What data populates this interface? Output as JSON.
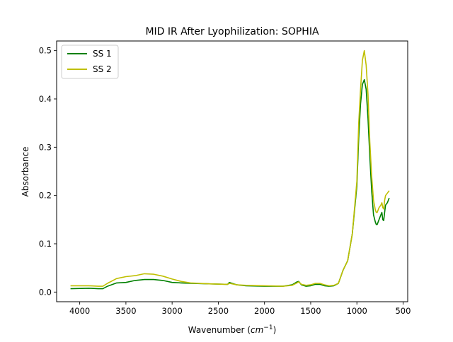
{
  "chart_data": {
    "type": "line",
    "title": "MID IR After Lyophilization: SOPHIA",
    "xlabel": "Wavenumber",
    "xlabel_unit_base": "cm",
    "xlabel_unit_exp": "−1",
    "ylabel": "Absorbance",
    "xlim": [
      4250,
      450
    ],
    "ylim": [
      -0.02,
      0.52
    ],
    "x_inverted": true,
    "grid": false,
    "legend_position": "top-left",
    "xticks": [
      4000,
      3500,
      3000,
      2500,
      2000,
      1500,
      1000,
      500
    ],
    "xtick_labels": [
      "4000",
      "3500",
      "3000",
      "2500",
      "2000",
      "1500",
      "1000",
      "500"
    ],
    "yticks": [
      0.0,
      0.1,
      0.2,
      0.3,
      0.4,
      0.5
    ],
    "ytick_labels": [
      "0.0",
      "0.1",
      "0.2",
      "0.3",
      "0.4",
      "0.5"
    ],
    "series": [
      {
        "name": "SS 1",
        "color": "#008000",
        "x": [
          4100,
          3900,
          3800,
          3750,
          3700,
          3600,
          3500,
          3400,
          3300,
          3200,
          3100,
          3000,
          2900,
          2800,
          2600,
          2400,
          2380,
          2350,
          2300,
          2200,
          2000,
          1800,
          1700,
          1650,
          1630,
          1600,
          1550,
          1500,
          1450,
          1400,
          1350,
          1300,
          1250,
          1200,
          1150,
          1100,
          1050,
          1000,
          980,
          960,
          950,
          940,
          920,
          900,
          880,
          860,
          840,
          820,
          800,
          790,
          780,
          760,
          740,
          730,
          720,
          710,
          700,
          690,
          670,
          650
        ],
        "y": [
          0.007,
          0.008,
          0.007,
          0.007,
          0.012,
          0.019,
          0.02,
          0.024,
          0.026,
          0.026,
          0.024,
          0.02,
          0.019,
          0.018,
          0.017,
          0.016,
          0.02,
          0.018,
          0.015,
          0.013,
          0.012,
          0.012,
          0.015,
          0.021,
          0.022,
          0.015,
          0.012,
          0.013,
          0.016,
          0.016,
          0.013,
          0.012,
          0.013,
          0.018,
          0.045,
          0.065,
          0.12,
          0.22,
          0.32,
          0.39,
          0.41,
          0.43,
          0.44,
          0.42,
          0.36,
          0.28,
          0.21,
          0.16,
          0.145,
          0.14,
          0.14,
          0.15,
          0.16,
          0.165,
          0.15,
          0.148,
          0.165,
          0.18,
          0.185,
          0.195
        ]
      },
      {
        "name": "SS 2",
        "color": "#bfbf00",
        "x": [
          4100,
          3900,
          3800,
          3750,
          3700,
          3600,
          3500,
          3400,
          3300,
          3200,
          3100,
          3000,
          2900,
          2800,
          2600,
          2400,
          2380,
          2350,
          2300,
          2200,
          2000,
          1800,
          1700,
          1650,
          1630,
          1600,
          1550,
          1500,
          1450,
          1400,
          1350,
          1300,
          1250,
          1200,
          1150,
          1100,
          1050,
          1000,
          980,
          960,
          950,
          940,
          920,
          900,
          880,
          860,
          840,
          820,
          800,
          790,
          780,
          760,
          740,
          730,
          720,
          710,
          700,
          690,
          670,
          650
        ],
        "y": [
          0.013,
          0.013,
          0.012,
          0.012,
          0.018,
          0.028,
          0.032,
          0.034,
          0.038,
          0.037,
          0.033,
          0.027,
          0.022,
          0.019,
          0.017,
          0.016,
          0.018,
          0.017,
          0.015,
          0.014,
          0.013,
          0.012,
          0.014,
          0.019,
          0.021,
          0.016,
          0.014,
          0.015,
          0.018,
          0.018,
          0.015,
          0.013,
          0.014,
          0.018,
          0.045,
          0.065,
          0.12,
          0.23,
          0.35,
          0.42,
          0.45,
          0.48,
          0.5,
          0.47,
          0.41,
          0.31,
          0.24,
          0.19,
          0.17,
          0.165,
          0.165,
          0.175,
          0.18,
          0.185,
          0.175,
          0.172,
          0.19,
          0.2,
          0.205,
          0.21
        ]
      }
    ]
  }
}
